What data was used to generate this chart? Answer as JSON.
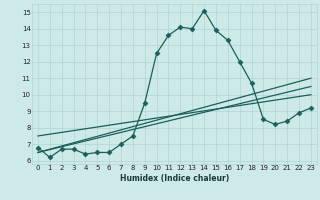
{
  "xlabel": "Humidex (Indice chaleur)",
  "xlim": [
    -0.5,
    23.5
  ],
  "ylim": [
    5.8,
    15.5
  ],
  "yticks": [
    6,
    7,
    8,
    9,
    10,
    11,
    12,
    13,
    14,
    15
  ],
  "xticks": [
    0,
    1,
    2,
    3,
    4,
    5,
    6,
    7,
    8,
    9,
    10,
    11,
    12,
    13,
    14,
    15,
    16,
    17,
    18,
    19,
    20,
    21,
    22,
    23
  ],
  "bg_color": "#ceeae8",
  "grid_color": "#afd4d2",
  "line_color": "#1a5f5a",
  "series1_x": [
    0,
    1,
    2,
    3,
    4,
    5,
    6,
    7,
    8,
    9,
    10,
    11,
    12,
    13,
    14,
    15,
    16,
    17,
    18,
    19,
    20,
    21,
    22,
    23
  ],
  "series1_y": [
    6.8,
    6.2,
    6.7,
    6.7,
    6.4,
    6.5,
    6.5,
    7.0,
    7.5,
    9.5,
    12.5,
    13.6,
    14.1,
    14.0,
    15.1,
    13.9,
    13.3,
    12.0,
    10.7,
    8.5,
    8.2,
    8.4,
    8.9,
    9.2
  ],
  "line1_x": [
    0,
    23
  ],
  "line1_y": [
    6.5,
    10.5
  ],
  "line2_x": [
    0,
    23
  ],
  "line2_y": [
    6.5,
    11.0
  ],
  "line3_x": [
    0,
    23
  ],
  "line3_y": [
    7.5,
    10.0
  ],
  "marker": "D",
  "markersize": 2.5,
  "linewidth": 0.9
}
